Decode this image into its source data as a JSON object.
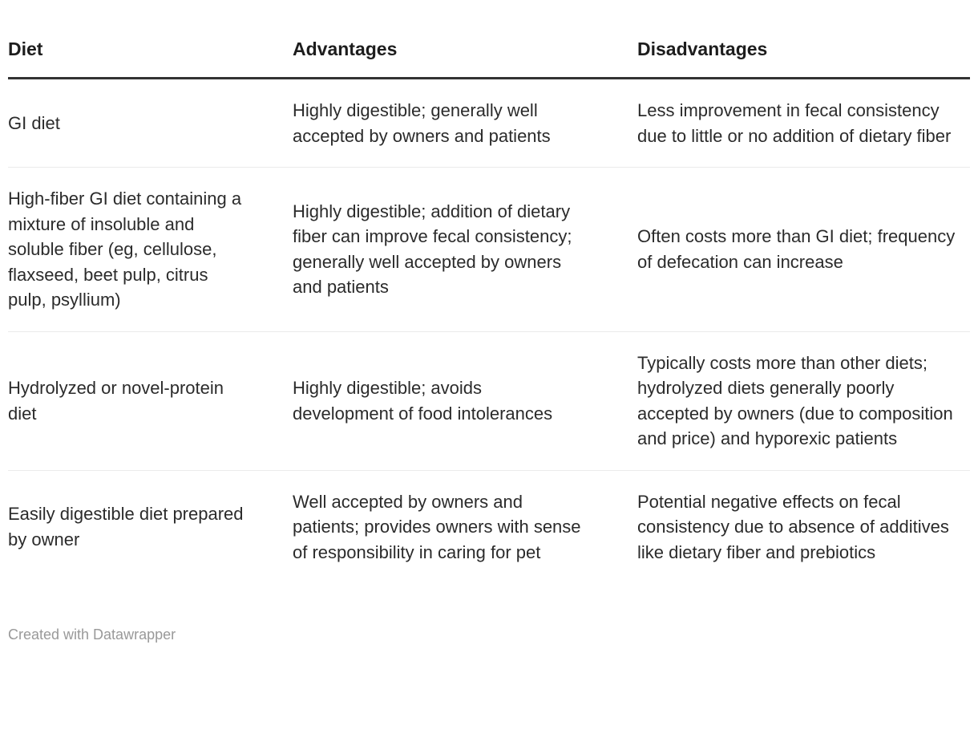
{
  "chart_data": {
    "type": "table",
    "columns": [
      "Diet",
      "Advantages",
      "Disadvantages"
    ],
    "rows": [
      [
        "GI diet",
        "Highly digestible; generally well accepted by owners and patients",
        "Less improvement in fecal consistency due to little or no addition of dietary fiber"
      ],
      [
        "High-fiber GI diet containing a mixture of insoluble and soluble fiber (eg, cellulose, flaxseed, beet pulp, citrus pulp, psyllium)",
        "Highly digestible; addition of dietary fiber can improve fecal consistency; generally well accepted by owners and patients",
        "Often costs more than GI diet; frequency of defecation can increase"
      ],
      [
        "Hydrolyzed or novel-protein diet",
        "Highly digestible; avoids development of food intolerances",
        "Typically costs more than other diets; hydrolyzed diets generally poorly accepted by owners (due to composition and price) and hyporexic patients"
      ],
      [
        "Easily digestible diet prepared by owner",
        "Well accepted by owners and patients; provides owners with sense of responsibility in caring for pet",
        "Potential negative effects on fecal consistency due to absence of additives like dietary fiber and prebiotics"
      ]
    ],
    "title": "",
    "legend_position": "none",
    "grid": "horizontal-dividers-only"
  },
  "footer": {
    "credit": "Created with Datawrapper"
  },
  "colors": {
    "header_text": "#1d1d1d",
    "body_text": "#2b2b2b",
    "header_border": "#333333",
    "row_divider": "#ebebeb",
    "footer_text": "#999999",
    "background": "#ffffff"
  }
}
